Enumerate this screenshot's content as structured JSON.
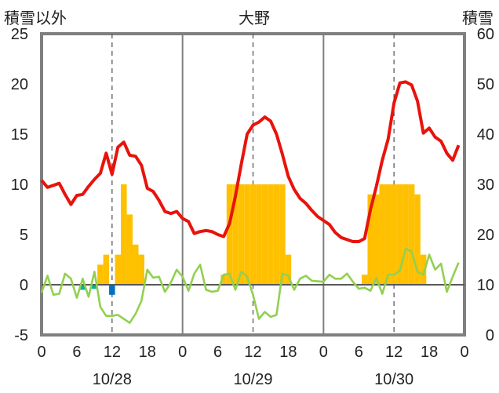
{
  "chart_data": {
    "type": "bar+line",
    "title": "大野",
    "left_axis_title": "積雪以外",
    "right_axis_title": "積雪",
    "left_ylim": [
      -5,
      25
    ],
    "left_yticks": [
      "25",
      "20",
      "15",
      "10",
      "5",
      "0",
      "-5"
    ],
    "right_ylim": [
      0,
      60
    ],
    "right_yticks": [
      "60",
      "50",
      "40",
      "30",
      "20",
      "10",
      "0"
    ],
    "x_hours": [
      0,
      72
    ],
    "x_tick_labels": [
      "0",
      "6",
      "12",
      "18",
      "0",
      "6",
      "12",
      "18",
      "0",
      "6",
      "12",
      "18",
      "0"
    ],
    "date_labels": [
      "10/28",
      "10/29",
      "10/30"
    ],
    "grid": "vertical dashed at 12h, solid at day boundaries",
    "colors": {
      "red_line": "#e8130c",
      "green_line": "#92d050",
      "orange_bars": "#ffc000",
      "blue_bars": "#0070c0",
      "teal_bars": "#00b0a0",
      "frame": "#7f7f7f",
      "grid": "#595959"
    },
    "series": [
      {
        "color": "red_line",
        "type": "line",
        "axis": "left",
        "points": [
          [
            0,
            10.4
          ],
          [
            1,
            9.7
          ],
          [
            2,
            9.9
          ],
          [
            3,
            10.1
          ],
          [
            4,
            9
          ],
          [
            5,
            8
          ],
          [
            6,
            8.9
          ],
          [
            7,
            9
          ],
          [
            8,
            9.8
          ],
          [
            9,
            10.5
          ],
          [
            10,
            11.1
          ],
          [
            11,
            13.1
          ],
          [
            12,
            11
          ],
          [
            13,
            13.7
          ],
          [
            14,
            14.2
          ],
          [
            15,
            12.9
          ],
          [
            16,
            12.8
          ],
          [
            17,
            11.9
          ],
          [
            18,
            9.6
          ],
          [
            19,
            9.3
          ],
          [
            20,
            8.4
          ],
          [
            21,
            7.3
          ],
          [
            22,
            7.1
          ],
          [
            23,
            7.3
          ],
          [
            24,
            6.6
          ],
          [
            25,
            6.3
          ],
          [
            26,
            5.1
          ],
          [
            27,
            5.3
          ],
          [
            28,
            5.4
          ],
          [
            29,
            5.3
          ],
          [
            30,
            5
          ],
          [
            31,
            4.8
          ],
          [
            32,
            6.1
          ],
          [
            33,
            8.8
          ],
          [
            34,
            12
          ],
          [
            35,
            15
          ],
          [
            36,
            15.9
          ],
          [
            37,
            16.2
          ],
          [
            38,
            16.7
          ],
          [
            39,
            16.3
          ],
          [
            40,
            15
          ],
          [
            41,
            13
          ],
          [
            42,
            10.8
          ],
          [
            43,
            9.5
          ],
          [
            44,
            8.6
          ],
          [
            45,
            8.1
          ],
          [
            46,
            7.4
          ],
          [
            47,
            6.8
          ],
          [
            48,
            6.4
          ],
          [
            49,
            6.0
          ],
          [
            50,
            5.2
          ],
          [
            51,
            4.7
          ],
          [
            52,
            4.5
          ],
          [
            53,
            4.3
          ],
          [
            54,
            4.3
          ],
          [
            55,
            4.6
          ],
          [
            56,
            7.5
          ],
          [
            57,
            9.8
          ],
          [
            58,
            12.4
          ],
          [
            59,
            14.5
          ],
          [
            60,
            18.1
          ],
          [
            61,
            20.1
          ],
          [
            62,
            20.2
          ],
          [
            63,
            19.9
          ],
          [
            64,
            18.3
          ],
          [
            65,
            15.1
          ],
          [
            66,
            15.6
          ],
          [
            67,
            14.7
          ],
          [
            68,
            14.3
          ],
          [
            69,
            13.1
          ],
          [
            70,
            12.4
          ],
          [
            71,
            13.9
          ]
        ]
      },
      {
        "color": "green_line",
        "type": "line",
        "axis": "left",
        "points": [
          [
            0,
            -0.8
          ],
          [
            1,
            0.9
          ],
          [
            2,
            -1
          ],
          [
            3,
            -0.9
          ],
          [
            4,
            1.1
          ],
          [
            5,
            0.6
          ],
          [
            6,
            -1.3
          ],
          [
            7,
            0.6
          ],
          [
            8,
            -1.2
          ],
          [
            9,
            1.3
          ],
          [
            10,
            -2.2
          ],
          [
            11,
            -3.1
          ],
          [
            12,
            -3.1
          ],
          [
            13,
            -3
          ],
          [
            14,
            -3.4
          ],
          [
            15,
            -3.8
          ],
          [
            16,
            -2.9
          ],
          [
            17,
            -1.6
          ],
          [
            18,
            1.5
          ],
          [
            19,
            0.7
          ],
          [
            20,
            0.8
          ],
          [
            21,
            -0.7
          ],
          [
            22,
            0.2
          ],
          [
            23,
            1.5
          ],
          [
            24,
            0.8
          ],
          [
            25,
            -0.6
          ],
          [
            26,
            1.1
          ],
          [
            27,
            2
          ],
          [
            28,
            -0.5
          ],
          [
            29,
            -0.7
          ],
          [
            30,
            -0.6
          ],
          [
            31,
            1
          ],
          [
            32,
            1.1
          ],
          [
            33,
            -0.5
          ],
          [
            34,
            1.3
          ],
          [
            35,
            0.8
          ],
          [
            36,
            -1
          ],
          [
            37,
            -3.4
          ],
          [
            38,
            -2.7
          ],
          [
            39,
            -3.2
          ],
          [
            40,
            -3
          ],
          [
            41,
            1.1
          ],
          [
            42,
            0.9
          ],
          [
            43,
            -0.5
          ],
          [
            44,
            0.6
          ],
          [
            45,
            0.9
          ],
          [
            46,
            0.4
          ],
          [
            48,
            0.3
          ],
          [
            49,
            1
          ],
          [
            50,
            0.6
          ],
          [
            51,
            0.6
          ],
          [
            52,
            1.1
          ],
          [
            53,
            0.3
          ],
          [
            54,
            -0.4
          ],
          [
            55,
            -0.3
          ],
          [
            56,
            -0.6
          ],
          [
            57,
            0.7
          ],
          [
            58,
            -0.9
          ],
          [
            59,
            1
          ],
          [
            60,
            1
          ],
          [
            61,
            1.4
          ],
          [
            62,
            3.6
          ],
          [
            63,
            3.3
          ],
          [
            64,
            1.3
          ],
          [
            65,
            1
          ],
          [
            66,
            3
          ],
          [
            67,
            1.5
          ],
          [
            68,
            2.1
          ],
          [
            69,
            -0.7
          ],
          [
            70,
            0.8
          ],
          [
            71,
            2.2
          ]
        ]
      },
      {
        "color": "orange_bars",
        "type": "bar",
        "axis": "left",
        "bars": [
          [
            10,
            2
          ],
          [
            11,
            3
          ],
          [
            13,
            3
          ],
          [
            14,
            10
          ],
          [
            15,
            7
          ],
          [
            16,
            4
          ],
          [
            17,
            3
          ],
          [
            31,
            1
          ],
          [
            32,
            10
          ],
          [
            33,
            10
          ],
          [
            34,
            10
          ],
          [
            35,
            10
          ],
          [
            36,
            10
          ],
          [
            37,
            10
          ],
          [
            38,
            10
          ],
          [
            39,
            10
          ],
          [
            40,
            10
          ],
          [
            41,
            10
          ],
          [
            42,
            3
          ],
          [
            55,
            1
          ],
          [
            56,
            9
          ],
          [
            57,
            9
          ],
          [
            58,
            10
          ],
          [
            59,
            10
          ],
          [
            60,
            10
          ],
          [
            61,
            10
          ],
          [
            62,
            10
          ],
          [
            63,
            10
          ],
          [
            64,
            9
          ],
          [
            65,
            3
          ]
        ]
      },
      {
        "color": "teal_bars",
        "type": "bar",
        "axis": "left",
        "bars": [
          [
            7,
            -0.5
          ],
          [
            9,
            -0.4
          ]
        ]
      },
      {
        "color": "blue_bars",
        "type": "bar",
        "axis": "left",
        "bars": [
          [
            12,
            -1
          ]
        ]
      }
    ]
  }
}
